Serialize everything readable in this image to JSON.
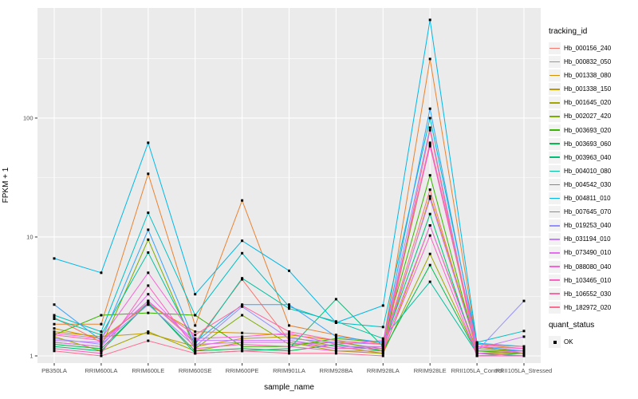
{
  "figure": {
    "background": "#FFFFFF",
    "panel_background": "#EBEBEB",
    "grid_color": "#FFFFFF",
    "axis_text_color": "#4D4D4D",
    "tick_mark_color": "#333333",
    "point_color": "#000000"
  },
  "chart_data": {
    "type": "line",
    "title": "",
    "xlabel": "sample_name",
    "ylabel": "FPKM + 1",
    "y_scale": "log10",
    "ylim": [
      0.87,
      843
    ],
    "y_ticks": [
      1,
      10,
      100
    ],
    "y_minor_ticks": [
      3.162,
      31.62,
      316.2
    ],
    "grid": true,
    "legend_position": "right",
    "categories": [
      "PB350LA",
      "RRIM600LA",
      "RRIM600LE",
      "RRIM600SE",
      "RRIM600PE",
      "RRIM901LA",
      "RRIM928BA",
      "RRIM928LA",
      "RRIM928LE",
      "RRII105LA_Control",
      "RRII105LA_Stressed"
    ],
    "series": [
      {
        "name": "Hb_000156_240",
        "color": "#F8766D",
        "values": [
          2.1,
          1.3,
          2.9,
          1.3,
          4.4,
          1.35,
          1.15,
          1.2,
          25,
          1.1,
          1.1
        ]
      },
      {
        "name": "Hb_000832_050",
        "color": "#EA8331",
        "values": [
          1.85,
          1.85,
          34,
          1.8,
          20.3,
          1.8,
          1.5,
          1.25,
          314,
          1.25,
          1.15
        ]
      },
      {
        "name": "Hb_001338_080",
        "color": "#D89000",
        "values": [
          1.7,
          1.4,
          2.7,
          1.6,
          1.56,
          1.5,
          1.35,
          1.1,
          22,
          1.2,
          1.05
        ]
      },
      {
        "name": "Hb_001338_150",
        "color": "#C09B00",
        "values": [
          1.6,
          1.45,
          1.55,
          1.2,
          1.4,
          1.45,
          1.2,
          1.05,
          12.5,
          1.1,
          1.1
        ]
      },
      {
        "name": "Hb_001645_020",
        "color": "#A3A500",
        "values": [
          1.45,
          1.1,
          1.6,
          1.1,
          1.3,
          1.3,
          1.1,
          1.05,
          7.2,
          1.05,
          1.05
        ]
      },
      {
        "name": "Hb_002027_420",
        "color": "#7CAE00",
        "values": [
          1.3,
          1.2,
          9.5,
          1.15,
          2.2,
          1.25,
          1.3,
          1.15,
          60,
          1.15,
          1.1
        ]
      },
      {
        "name": "Hb_003693_020",
        "color": "#39B600",
        "values": [
          1.5,
          2.2,
          2.3,
          2.2,
          1.2,
          1.2,
          1.4,
          1.3,
          33,
          1.1,
          1.05
        ]
      },
      {
        "name": "Hb_003693_060",
        "color": "#00BB4E",
        "values": [
          1.25,
          1.15,
          2.75,
          1.1,
          1.15,
          1.1,
          1.25,
          1.1,
          5.8,
          1.05,
          1.0
        ]
      },
      {
        "name": "Hb_003963_040",
        "color": "#00C079",
        "values": [
          1.2,
          1.1,
          2.8,
          1.05,
          1.1,
          1.15,
          3.0,
          1.2,
          15.6,
          1.0,
          1.05
        ]
      },
      {
        "name": "Hb_004010_080",
        "color": "#00C19F",
        "values": [
          2.05,
          1.5,
          7.4,
          1.25,
          4.5,
          2.5,
          1.95,
          1.4,
          4.2,
          1.05,
          1.0
        ]
      },
      {
        "name": "Hb_004542_030",
        "color": "#00BFC4",
        "values": [
          2.2,
          1.6,
          16,
          2.2,
          7.3,
          2.6,
          1.9,
          1.75,
          100,
          1.3,
          1.62
        ]
      },
      {
        "name": "Hb_004811_010",
        "color": "#00B8E7",
        "values": [
          6.6,
          5.0,
          62,
          3.3,
          9.3,
          5.2,
          1.9,
          2.65,
          670,
          1.28,
          1.2
        ]
      },
      {
        "name": "Hb_007645_070",
        "color": "#35A2FF",
        "values": [
          2.7,
          1.35,
          11.5,
          1.3,
          2.7,
          2.7,
          1.45,
          1.3,
          120,
          1.2,
          1.1
        ]
      },
      {
        "name": "Hb_019253_040",
        "color": "#9590FF",
        "values": [
          1.4,
          1.25,
          2.7,
          1.2,
          2.6,
          1.4,
          1.3,
          1.25,
          83,
          1.1,
          2.9
        ]
      },
      {
        "name": "Hb_031194_010",
        "color": "#C77CFF",
        "values": [
          1.35,
          1.3,
          2.9,
          1.35,
          1.35,
          1.35,
          1.2,
          1.2,
          21,
          1.15,
          1.45
        ]
      },
      {
        "name": "Hb_073490_010",
        "color": "#E76BF3",
        "values": [
          1.3,
          1.2,
          3.3,
          1.25,
          1.3,
          1.3,
          1.15,
          1.15,
          12.5,
          1.05,
          1.1
        ]
      },
      {
        "name": "Hb_088080_040",
        "color": "#FA62DB",
        "values": [
          1.55,
          1.4,
          5.0,
          1.4,
          1.45,
          1.55,
          1.25,
          1.35,
          58,
          1.2,
          1.15
        ]
      },
      {
        "name": "Hb_103465_010",
        "color": "#FF61C3",
        "values": [
          1.15,
          1.05,
          3.9,
          1.15,
          1.25,
          1.2,
          1.1,
          1.1,
          10.3,
          1.0,
          1.0
        ]
      },
      {
        "name": "Hb_106552_030",
        "color": "#FF67A4",
        "values": [
          1.5,
          1.35,
          2.8,
          1.5,
          2.65,
          1.6,
          1.35,
          1.25,
          62,
          1.25,
          1.2
        ]
      },
      {
        "name": "Hb_182972_020",
        "color": "#FF6C91",
        "values": [
          1.1,
          1.0,
          1.34,
          1.05,
          1.1,
          1.05,
          1.05,
          1.0,
          79,
          1.0,
          1.05
        ]
      }
    ]
  },
  "legend": {
    "tracking_title": "tracking_id",
    "quant_title": "quant_status",
    "quant_items": [
      {
        "label": "OK",
        "marker": "black-square"
      }
    ]
  }
}
